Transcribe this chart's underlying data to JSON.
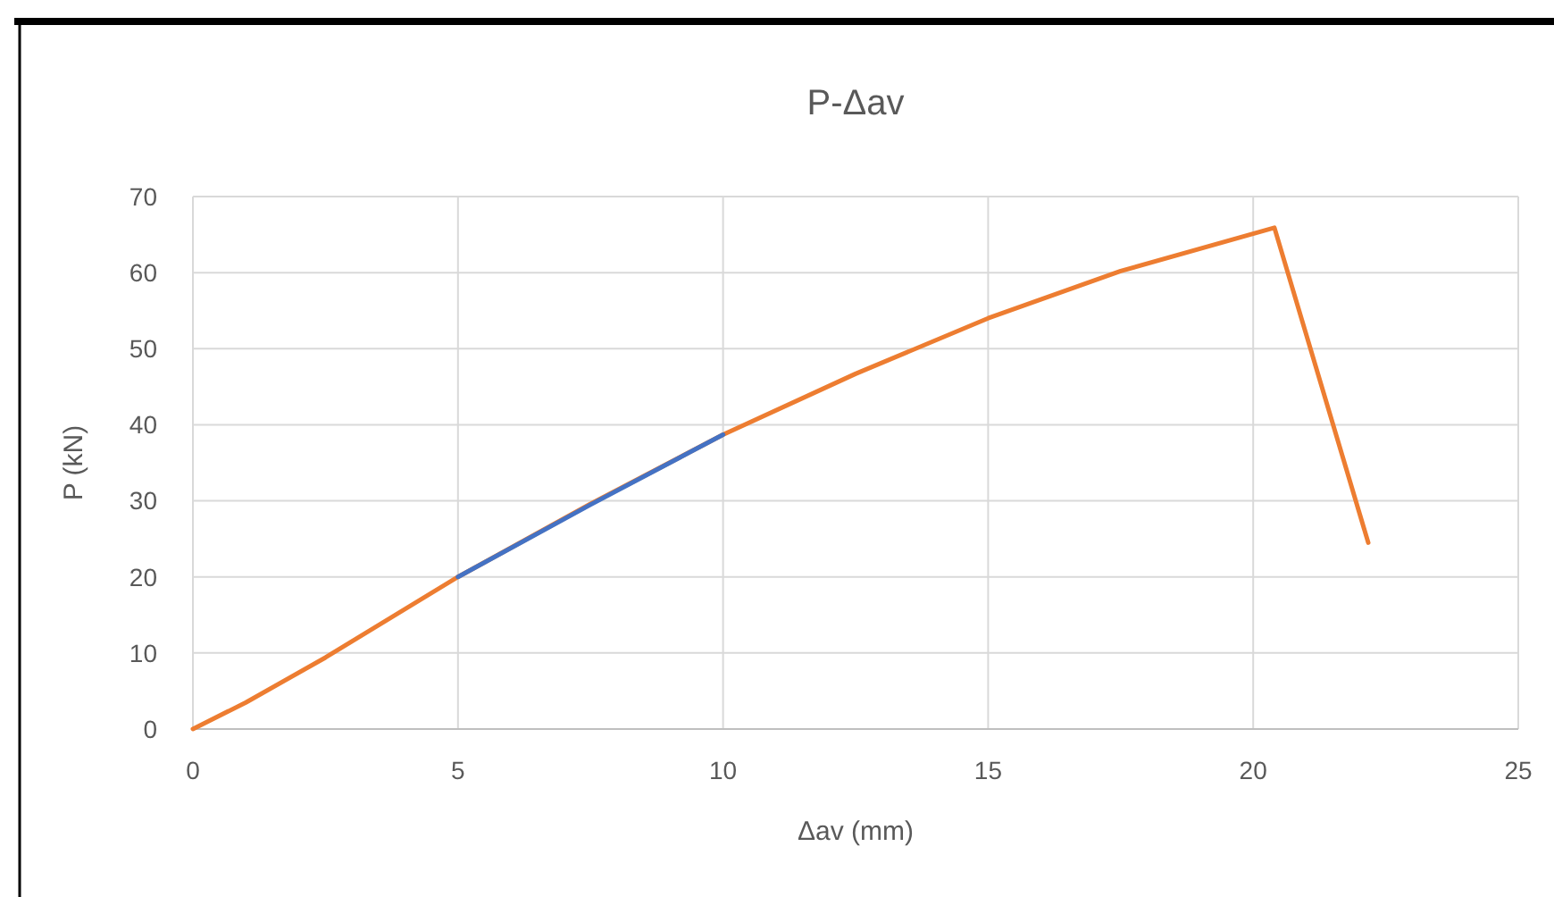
{
  "chart_data": {
    "type": "line",
    "title": "P-Δav",
    "xlabel": "Δav (mm)",
    "ylabel": "P (kN)",
    "xlim": [
      0,
      25
    ],
    "xticks": [
      0,
      5,
      10,
      15,
      20,
      25
    ],
    "ylim": [
      0,
      70
    ],
    "yticks": [
      0,
      10,
      20,
      30,
      40,
      50,
      60,
      70
    ],
    "grid": true,
    "line_style": "solid",
    "series": [
      {
        "color": "#ed7d31",
        "x": [
          0,
          1,
          2.5,
          5,
          7.5,
          10,
          12.5,
          15,
          17.5,
          20.4,
          22.17
        ],
        "values": [
          0,
          3.5,
          9.4,
          20,
          29.6,
          38.7,
          46.7,
          54,
          60.2,
          65.9,
          24.5
        ]
      },
      {
        "color": "#4472c4",
        "x": [
          5,
          7.5,
          10
        ],
        "values": [
          20,
          29.5,
          38.7
        ]
      }
    ]
  }
}
